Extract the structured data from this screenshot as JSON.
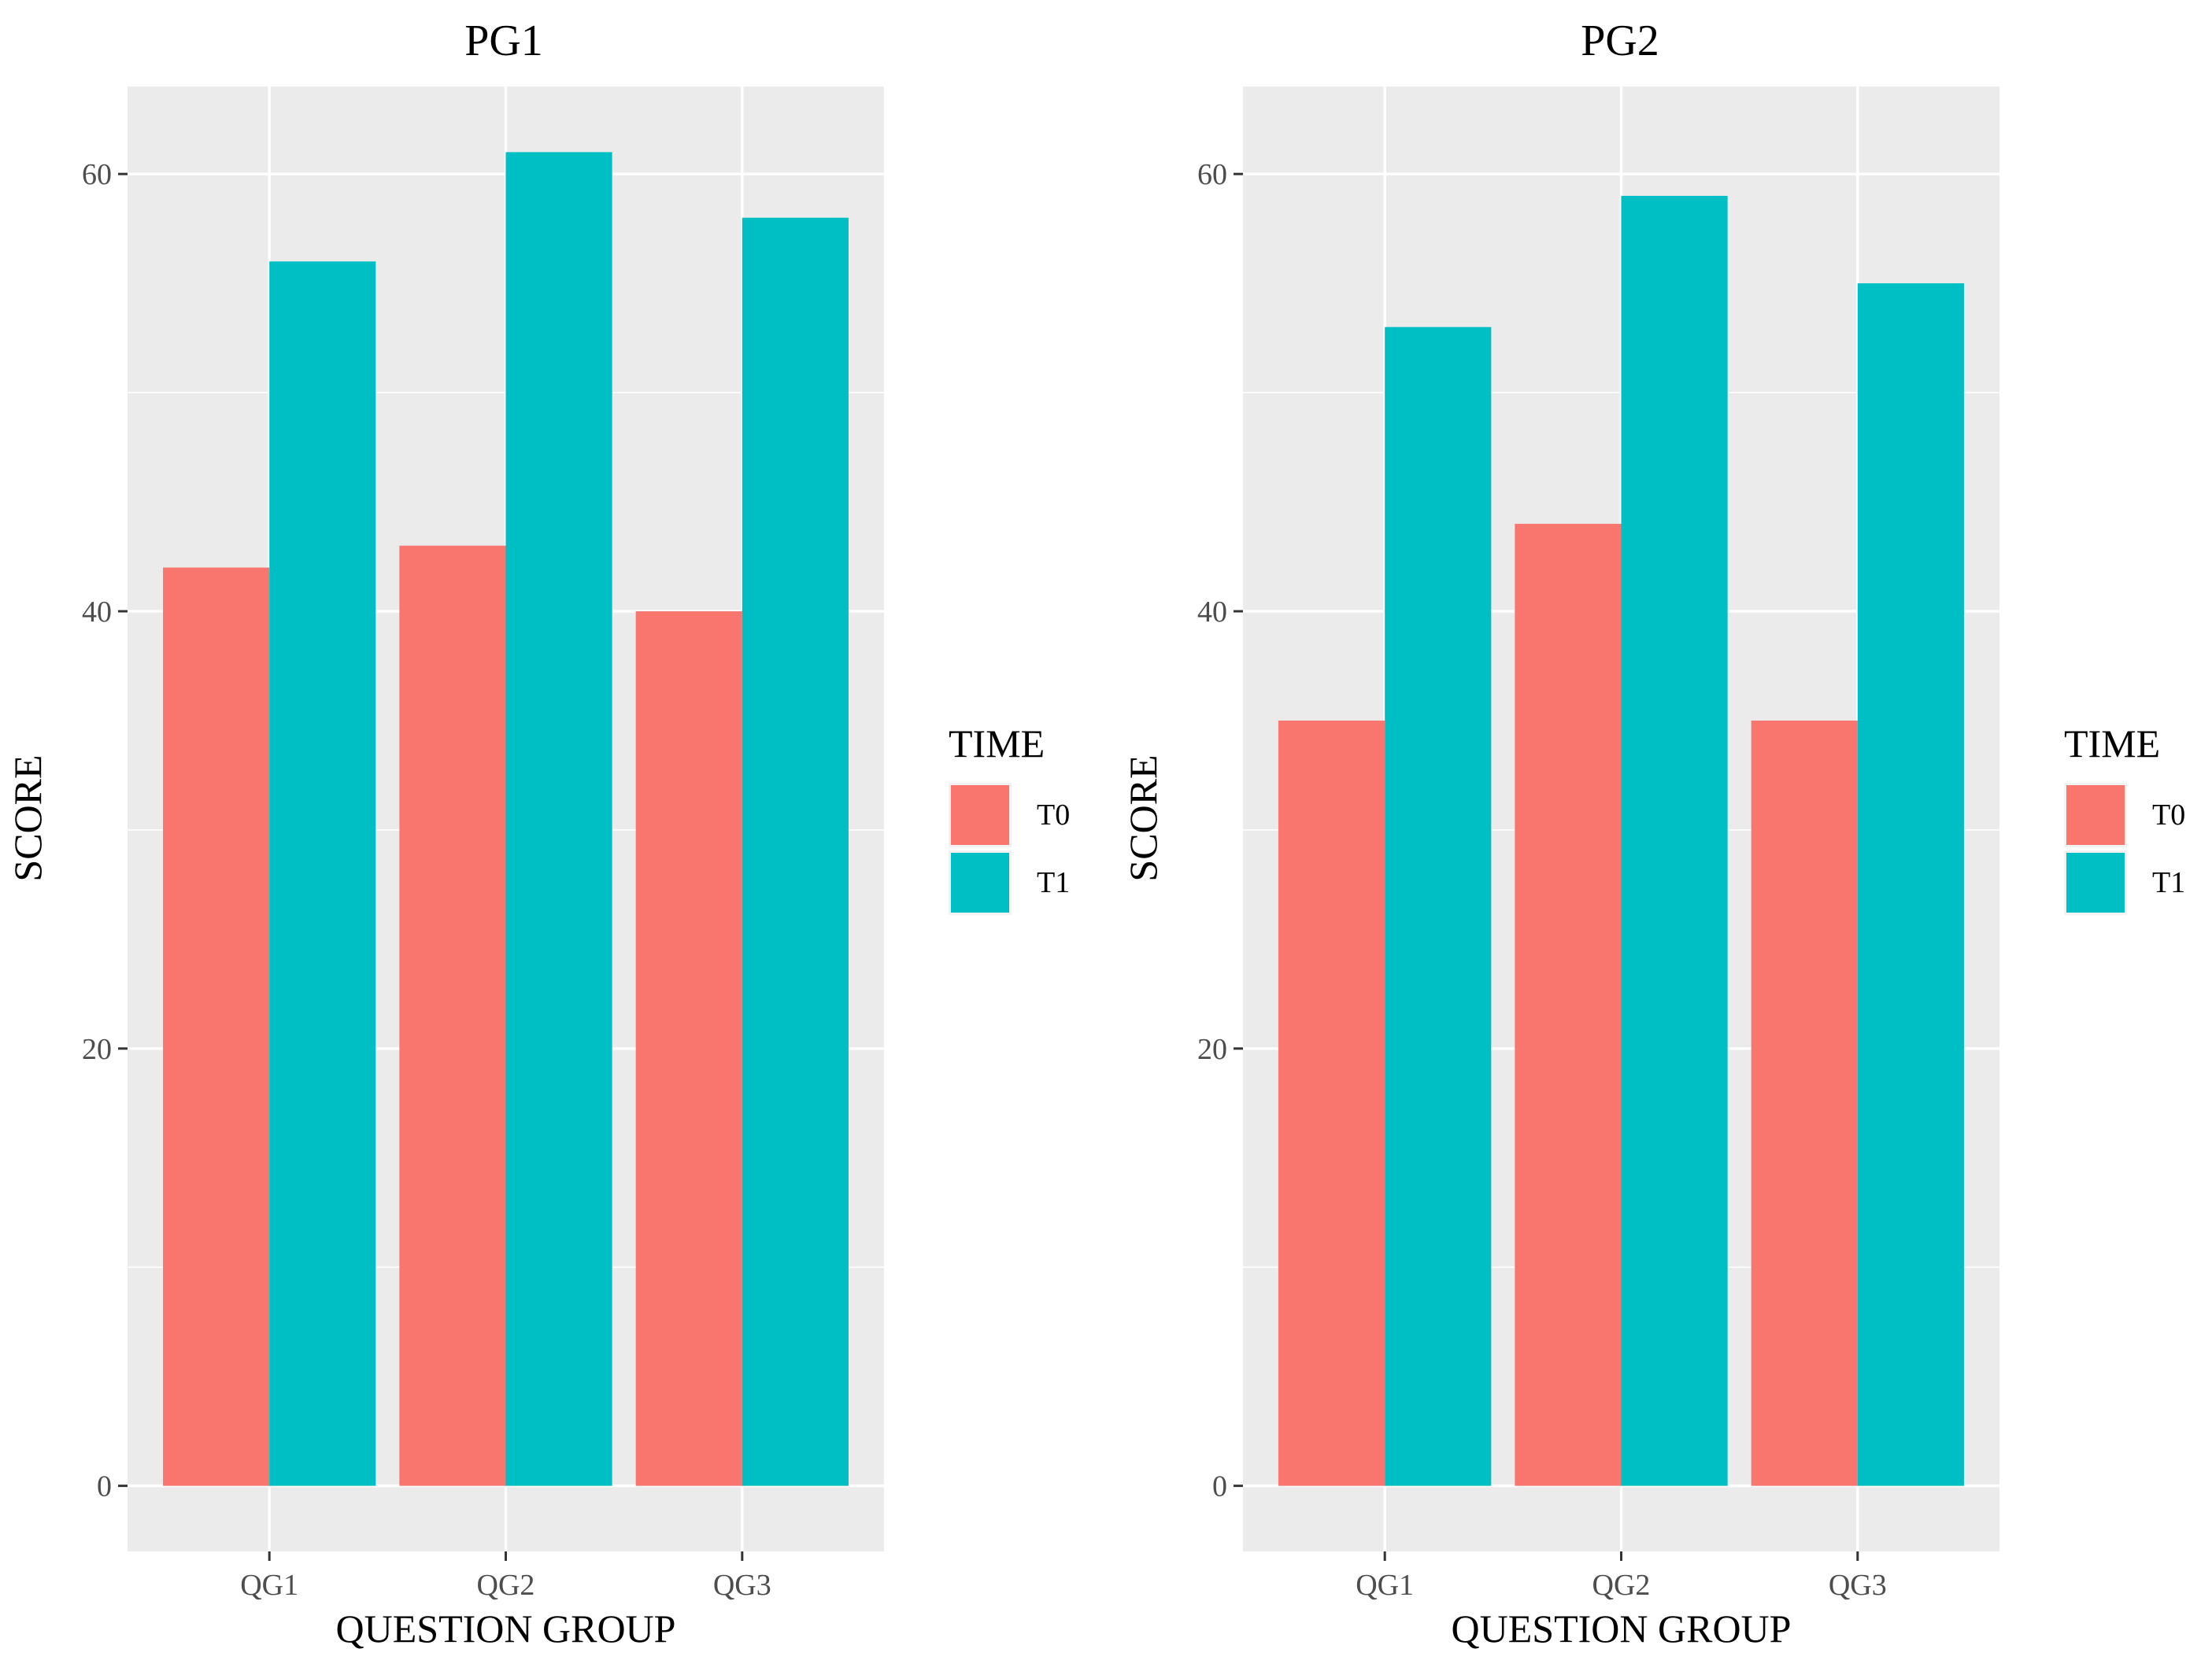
{
  "chart_data": [
    {
      "type": "bar",
      "title": "PG1",
      "xlabel": "QUESTION GROUP",
      "ylabel": "SCORE",
      "categories": [
        "QG1",
        "QG2",
        "QG3"
      ],
      "series": [
        {
          "name": "T0",
          "values": [
            42,
            43,
            40
          ],
          "color": "#F8766D"
        },
        {
          "name": "T1",
          "values": [
            56,
            61,
            58
          ],
          "color": "#00BFC4"
        }
      ],
      "y_ticks": [
        0,
        20,
        40,
        60
      ],
      "ylim": [
        -3,
        64
      ],
      "grid": true,
      "legend": {
        "title": "TIME",
        "entries": [
          "T0",
          "T1"
        ],
        "position": "right"
      }
    },
    {
      "type": "bar",
      "title": "PG2",
      "xlabel": "QUESTION GROUP",
      "ylabel": "SCORE",
      "categories": [
        "QG1",
        "QG2",
        "QG3"
      ],
      "series": [
        {
          "name": "T0",
          "values": [
            35,
            44,
            35
          ],
          "color": "#F8766D"
        },
        {
          "name": "T1",
          "values": [
            53,
            59,
            55
          ],
          "color": "#00BFC4"
        }
      ],
      "y_ticks": [
        0,
        20,
        40,
        60
      ],
      "ylim": [
        -3,
        64
      ],
      "grid": true,
      "legend": {
        "title": "TIME",
        "entries": [
          "T0",
          "T1"
        ],
        "position": "right"
      }
    }
  ]
}
